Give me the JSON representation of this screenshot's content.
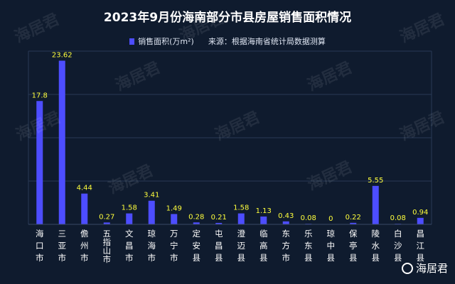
{
  "chart_data": {
    "type": "bar",
    "title": "2023年9月份海南部分市县房屋销售面积情况",
    "legend": {
      "series_label": "销售面积(万m²)",
      "source": "来源：根据海南省统计局数据测算",
      "placement": "top"
    },
    "categories": [
      "海口市",
      "三亚市",
      "儋州市",
      "五指山市",
      "文昌市",
      "琼海市",
      "万宁市",
      "定安县",
      "屯昌县",
      "澄迈县",
      "临高县",
      "东方市",
      "乐东县",
      "琼中县",
      "保亭县",
      "陵水县",
      "白沙县",
      "昌江县"
    ],
    "series": [
      {
        "name": "销售面积(万m²)",
        "values": [
          17.8,
          23.62,
          4.44,
          0.27,
          1.58,
          3.41,
          1.49,
          0.28,
          0.21,
          1.58,
          1.13,
          0.43,
          0.08,
          0,
          0.22,
          5.55,
          0.08,
          0.94
        ]
      }
    ],
    "value_labels": [
      "17.8",
      "23.62",
      "4.44",
      "0.27",
      "1.58",
      "3.41",
      "1.49",
      "0.28",
      "0.21",
      "1.58",
      "1.13",
      "0.43",
      "0.08",
      "0",
      "0.22",
      "5.55",
      "0.08",
      "0.94"
    ],
    "ylim": [
      0,
      25
    ],
    "grid": true,
    "colors": {
      "bar": "#4d4dff",
      "value_label": "#ffff3c",
      "grid": "#2a3a55",
      "axis": "#3a4a66"
    }
  },
  "watermark": {
    "text": "海居君"
  },
  "brand": {
    "text": "海居君"
  }
}
